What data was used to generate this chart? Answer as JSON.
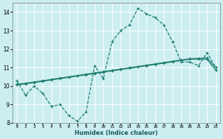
{
  "xlabel": "Humidex (Indice chaleur)",
  "bg_color": "#cceef0",
  "grid_color": "#ffffff",
  "line_color": "#1a7a6e",
  "xlim": [
    -0.5,
    23.5
  ],
  "ylim": [
    8,
    14.5
  ],
  "yticks": [
    8,
    9,
    10,
    11,
    12,
    13,
    14
  ],
  "xticks": [
    0,
    1,
    2,
    3,
    4,
    5,
    6,
    7,
    8,
    9,
    10,
    11,
    12,
    13,
    14,
    15,
    16,
    17,
    18,
    19,
    20,
    21,
    22,
    23
  ],
  "curve1_x": [
    0,
    1,
    2,
    3,
    4,
    5,
    6,
    7,
    8,
    9,
    10,
    11,
    12,
    13,
    14,
    15,
    16,
    17,
    18,
    19,
    20,
    21,
    22,
    23
  ],
  "curve1_y": [
    10.3,
    9.5,
    10.0,
    9.6,
    8.9,
    9.0,
    8.4,
    8.1,
    8.6,
    11.1,
    10.4,
    12.4,
    13.0,
    13.3,
    14.2,
    13.9,
    13.7,
    13.3,
    12.4,
    11.3,
    11.3,
    11.1,
    11.8,
    11.0
  ],
  "curve2_x": [
    0,
    1,
    2,
    3,
    4,
    5,
    6,
    7,
    8,
    9,
    10,
    11,
    12,
    13,
    14,
    15,
    16,
    17,
    18,
    19,
    20,
    21,
    22,
    23
  ],
  "curve2_y": [
    10.05,
    10.12,
    10.19,
    10.26,
    10.33,
    10.4,
    10.47,
    10.54,
    10.61,
    10.68,
    10.75,
    10.82,
    10.89,
    10.96,
    11.03,
    11.1,
    11.17,
    11.24,
    11.31,
    11.38,
    11.45,
    11.45,
    11.45,
    10.85
  ],
  "curve3_x": [
    0,
    1,
    2,
    3,
    4,
    5,
    6,
    7,
    8,
    9,
    10,
    11,
    12,
    13,
    14,
    15,
    16,
    17,
    18,
    19,
    20,
    21,
    22,
    23
  ],
  "curve3_y": [
    10.1,
    10.15,
    10.22,
    10.29,
    10.36,
    10.43,
    10.5,
    10.57,
    10.64,
    10.71,
    10.78,
    10.85,
    10.92,
    10.99,
    11.06,
    11.13,
    11.2,
    11.27,
    11.34,
    11.41,
    11.48,
    11.5,
    11.52,
    11.0
  ]
}
